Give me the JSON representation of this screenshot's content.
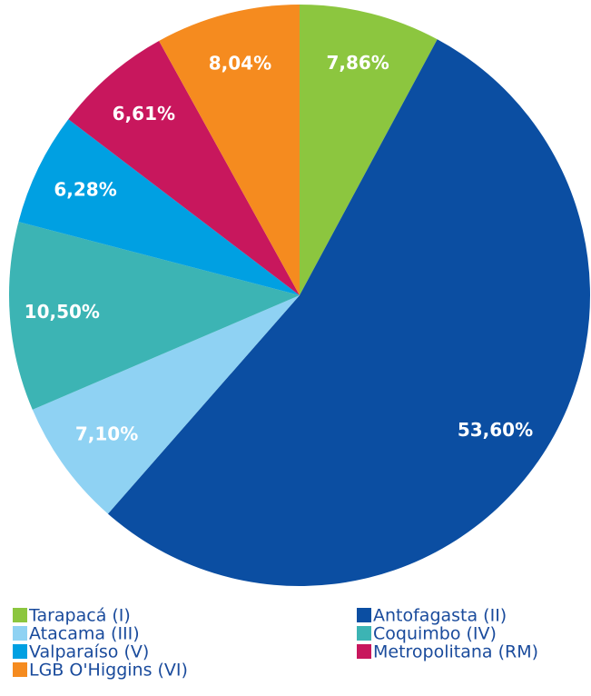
{
  "chart_data": {
    "type": "pie",
    "categories": [
      "Tarapacá (I)",
      "Antofagasta (II)",
      "Atacama (III)",
      "Coquimbo (IV)",
      "Valparaíso (V)",
      "Metropolitana (RM)",
      "LGB O'Higgins (VI)"
    ],
    "values": [
      7.86,
      53.6,
      7.1,
      10.5,
      6.28,
      6.61,
      8.04
    ],
    "value_labels": [
      "7,86%",
      "53,60%",
      "7,10%",
      "10,50%",
      "6,28%",
      "6,61%",
      "8,04%"
    ],
    "colors": [
      "#8cc63f",
      "#0b4ea2",
      "#8fd2f3",
      "#3cb4b4",
      "#00a0e2",
      "#c8175d",
      "#f58b1f"
    ]
  }
}
